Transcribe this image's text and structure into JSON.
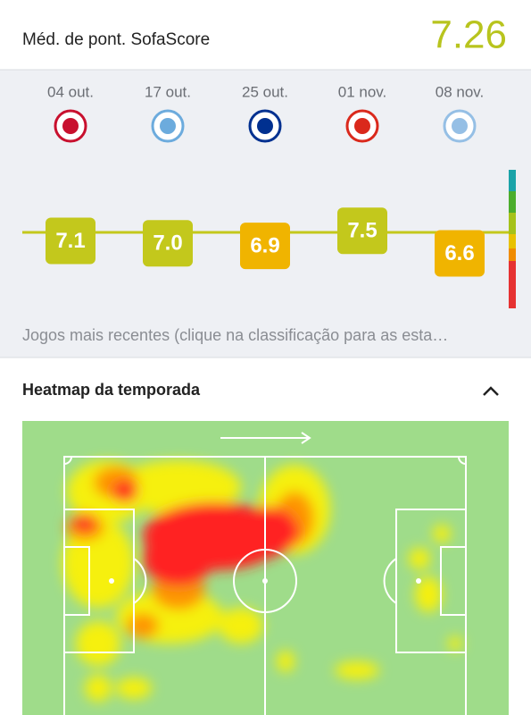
{
  "header": {
    "title": "Méd. de pont. SofaScore",
    "average": {
      "value": 7.26,
      "label": "7.26"
    }
  },
  "matches": [
    {
      "date": "04 out.",
      "rating": {
        "value": 7.1,
        "label": "7.1"
      },
      "color": "#c3c81c"
    },
    {
      "date": "17 out.",
      "rating": {
        "value": 7.0,
        "label": "7.0"
      },
      "color": "#c3c81c"
    },
    {
      "date": "25 out.",
      "rating": {
        "value": 6.9,
        "label": "6.9"
      },
      "color": "#f0b400"
    },
    {
      "date": "01 nov.",
      "rating": {
        "value": 7.5,
        "label": "7.5"
      },
      "color": "#c3c81c"
    },
    {
      "date": "08 nov.",
      "rating": {
        "value": 6.6,
        "label": "6.6"
      },
      "color": "#f0b400"
    }
  ],
  "note": "Jogos mais recentes (clique na classificação para as esta…",
  "heatmap": {
    "title": "Heatmap da temporada"
  }
}
